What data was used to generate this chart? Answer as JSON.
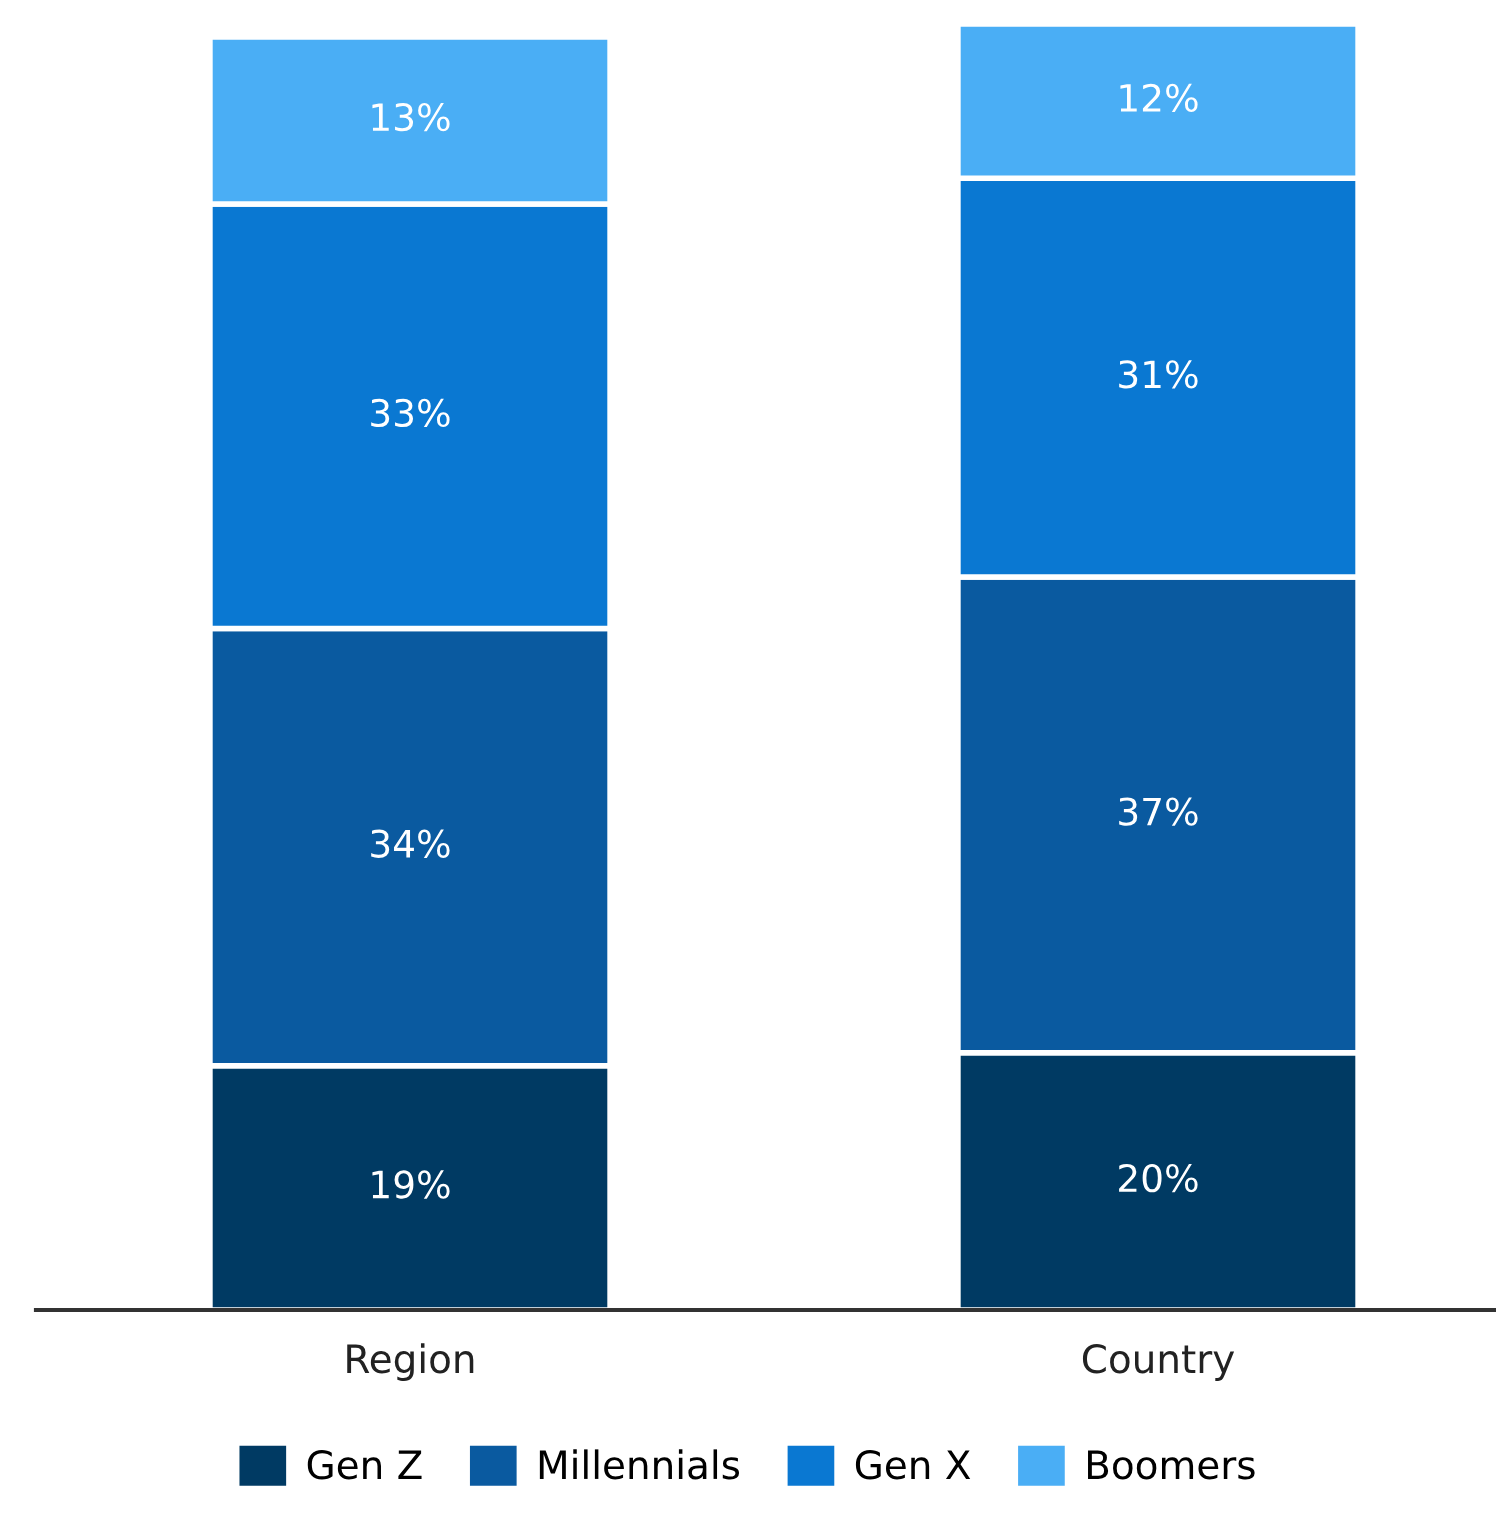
{
  "chart_data": {
    "type": "bar",
    "stacked": true,
    "legend": "bottom",
    "categories": [
      "Region",
      "Country"
    ],
    "series": [
      {
        "name": "Gen Z",
        "color": "#003a63",
        "values": [
          19,
          20
        ],
        "value_labels": [
          "19%",
          "20%"
        ]
      },
      {
        "name": "Millennials",
        "color": "#0a5aa0",
        "values": [
          34,
          37
        ],
        "value_labels": [
          "34%",
          "37%"
        ]
      },
      {
        "name": "Gen X",
        "color": "#0a78d2",
        "values": [
          33,
          31
        ],
        "value_labels": [
          "33%",
          "31%"
        ]
      },
      {
        "name": "Boomers",
        "color": "#4aaef5",
        "values": [
          13,
          12
        ],
        "value_labels": [
          "13%",
          "12%"
        ]
      }
    ]
  }
}
